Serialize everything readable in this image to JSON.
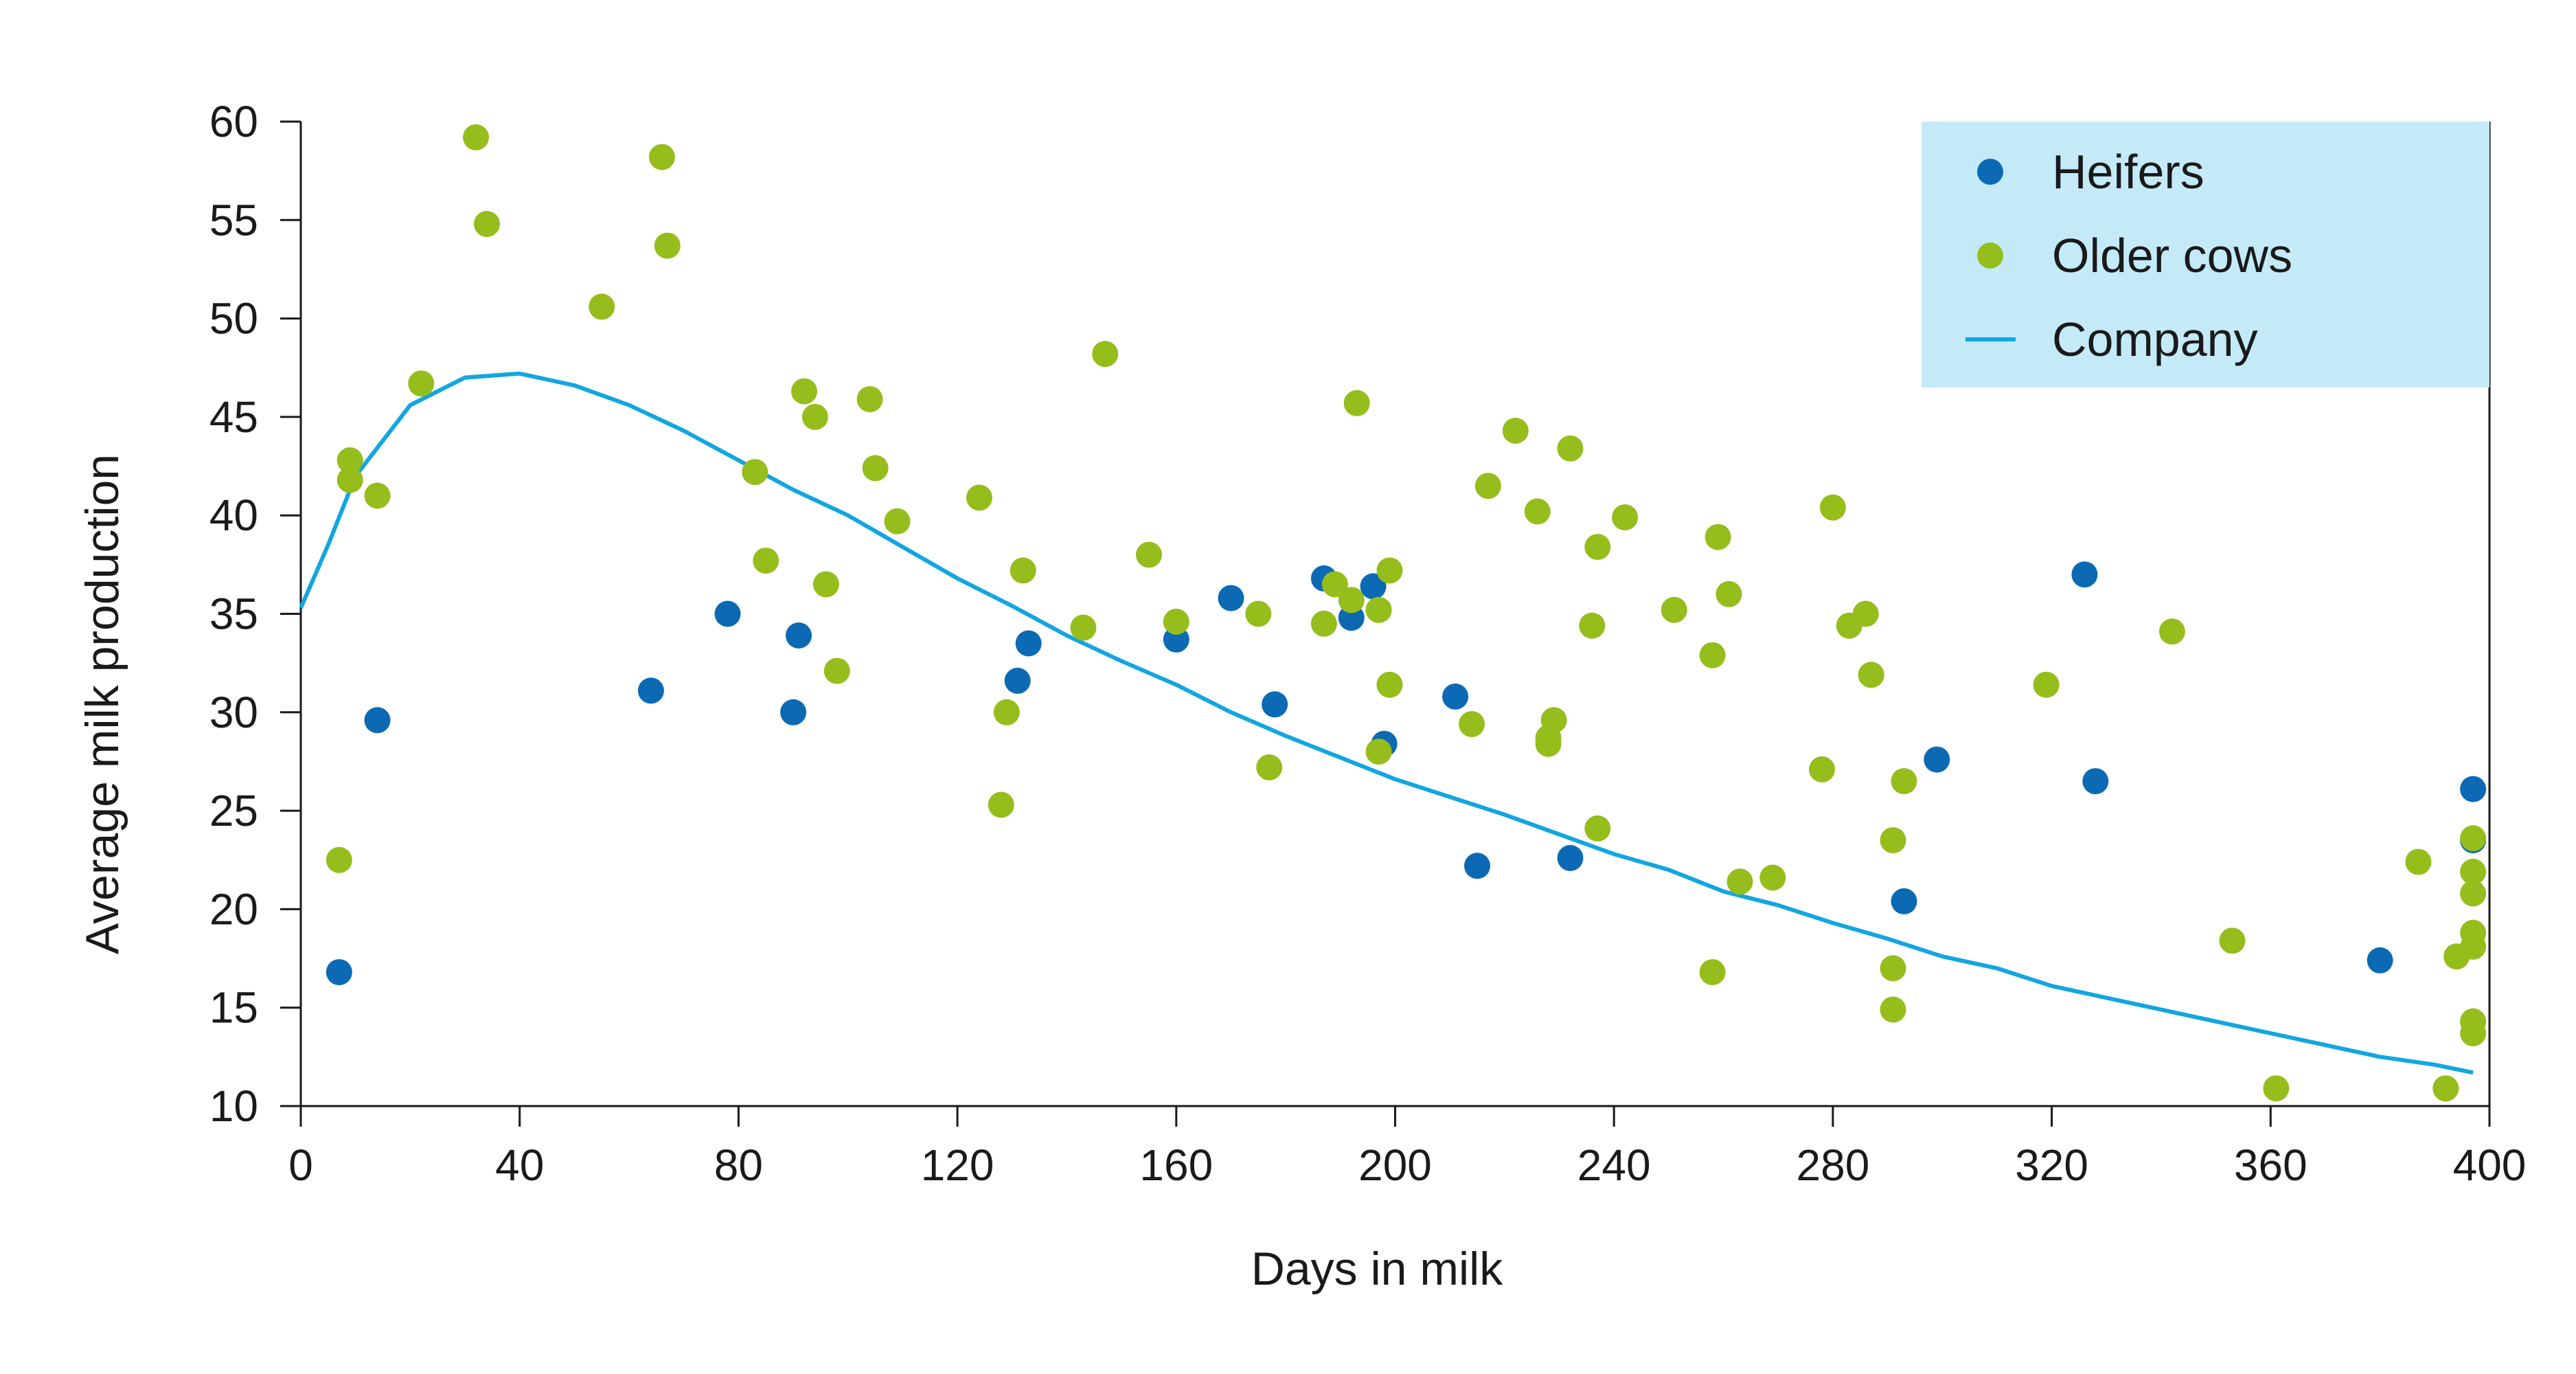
{
  "chart_data": {
    "type": "scatter",
    "title": "",
    "xlabel": "Days in milk",
    "ylabel": "Average milk production",
    "xlim": [
      0,
      400
    ],
    "ylim": [
      10,
      60
    ],
    "xticks": [
      0,
      40,
      80,
      120,
      160,
      200,
      240,
      280,
      320,
      360,
      400
    ],
    "yticks": [
      10,
      15,
      20,
      25,
      30,
      35,
      40,
      45,
      50,
      55,
      60
    ],
    "grid": false,
    "legend_position": "top-right",
    "legend_background": "#c4eaf8",
    "series": [
      {
        "name": "Heifers",
        "kind": "scatter",
        "color": "#0b6ab3",
        "points": [
          [
            7,
            16.8
          ],
          [
            14,
            29.6
          ],
          [
            64,
            31.1
          ],
          [
            78,
            35.0
          ],
          [
            91,
            33.9
          ],
          [
            90,
            30.0
          ],
          [
            131,
            31.6
          ],
          [
            133,
            33.5
          ],
          [
            160,
            33.7
          ],
          [
            170,
            35.8
          ],
          [
            178,
            30.4
          ],
          [
            187,
            36.8
          ],
          [
            192,
            34.8
          ],
          [
            196,
            36.4
          ],
          [
            198,
            28.4
          ],
          [
            211,
            30.8
          ],
          [
            215,
            22.2
          ],
          [
            232,
            22.6
          ],
          [
            293,
            20.4
          ],
          [
            299,
            27.6
          ],
          [
            326,
            37.0
          ],
          [
            328,
            26.5
          ],
          [
            380,
            17.4
          ],
          [
            397,
            26.1
          ],
          [
            397,
            23.5
          ]
        ]
      },
      {
        "name": "Older cows",
        "kind": "scatter",
        "color": "#95bd1c",
        "points": [
          [
            7,
            22.5
          ],
          [
            9,
            42.8
          ],
          [
            9,
            41.8
          ],
          [
            14,
            41.0
          ],
          [
            22,
            46.7
          ],
          [
            32,
            59.2
          ],
          [
            34,
            54.8
          ],
          [
            55,
            50.6
          ],
          [
            66,
            58.2
          ],
          [
            67,
            53.7
          ],
          [
            83,
            42.2
          ],
          [
            85,
            37.7
          ],
          [
            92,
            46.3
          ],
          [
            94,
            45.0
          ],
          [
            96,
            36.5
          ],
          [
            98,
            32.1
          ],
          [
            104,
            45.9
          ],
          [
            105,
            42.4
          ],
          [
            109,
            39.7
          ],
          [
            124,
            40.9
          ],
          [
            128,
            25.3
          ],
          [
            129,
            30.0
          ],
          [
            132,
            37.2
          ],
          [
            143,
            34.3
          ],
          [
            147,
            48.2
          ],
          [
            155,
            38.0
          ],
          [
            160,
            34.6
          ],
          [
            175,
            35.0
          ],
          [
            177,
            27.2
          ],
          [
            187,
            34.5
          ],
          [
            189,
            36.5
          ],
          [
            192,
            35.7
          ],
          [
            193,
            45.7
          ],
          [
            197,
            28.0
          ],
          [
            197,
            35.2
          ],
          [
            199,
            31.4
          ],
          [
            199,
            37.2
          ],
          [
            214,
            29.4
          ],
          [
            217,
            41.5
          ],
          [
            222,
            44.3
          ],
          [
            226,
            40.2
          ],
          [
            228,
            28.4
          ],
          [
            228,
            28.7
          ],
          [
            229,
            29.6
          ],
          [
            232,
            43.4
          ],
          [
            236,
            34.4
          ],
          [
            237,
            38.4
          ],
          [
            237,
            24.1
          ],
          [
            242,
            39.9
          ],
          [
            251,
            35.2
          ],
          [
            258,
            16.8
          ],
          [
            258,
            32.9
          ],
          [
            259,
            38.9
          ],
          [
            261,
            36.0
          ],
          [
            263,
            21.4
          ],
          [
            269,
            21.6
          ],
          [
            278,
            27.1
          ],
          [
            280,
            40.4
          ],
          [
            283,
            34.4
          ],
          [
            286,
            35.0
          ],
          [
            287,
            31.9
          ],
          [
            291,
            23.5
          ],
          [
            291,
            17.0
          ],
          [
            291,
            14.9
          ],
          [
            293,
            26.5
          ],
          [
            319,
            31.4
          ],
          [
            342,
            34.1
          ],
          [
            353,
            18.4
          ],
          [
            361,
            10.9
          ],
          [
            387,
            22.4
          ],
          [
            392,
            10.9
          ],
          [
            394,
            17.6
          ],
          [
            397,
            23.6
          ],
          [
            397,
            21.9
          ],
          [
            397,
            20.8
          ],
          [
            397,
            18.8
          ],
          [
            397,
            18.1
          ],
          [
            397,
            14.3
          ],
          [
            397,
            13.7
          ]
        ]
      },
      {
        "name": "Company",
        "kind": "line",
        "color": "#12a6e0",
        "points": [
          [
            0,
            35.3
          ],
          [
            5,
            38.5
          ],
          [
            10,
            42.0
          ],
          [
            20,
            45.6
          ],
          [
            30,
            47.0
          ],
          [
            40,
            47.2
          ],
          [
            50,
            46.6
          ],
          [
            60,
            45.6
          ],
          [
            70,
            44.3
          ],
          [
            80,
            42.8
          ],
          [
            90,
            41.3
          ],
          [
            100,
            40.0
          ],
          [
            110,
            38.4
          ],
          [
            120,
            36.8
          ],
          [
            130,
            35.4
          ],
          [
            140,
            33.9
          ],
          [
            150,
            32.6
          ],
          [
            160,
            31.4
          ],
          [
            170,
            30.0
          ],
          [
            180,
            28.8
          ],
          [
            190,
            27.7
          ],
          [
            200,
            26.6
          ],
          [
            210,
            25.7
          ],
          [
            220,
            24.8
          ],
          [
            230,
            23.8
          ],
          [
            240,
            22.8
          ],
          [
            250,
            22.0
          ],
          [
            260,
            20.9
          ],
          [
            270,
            20.2
          ],
          [
            280,
            19.3
          ],
          [
            290,
            18.5
          ],
          [
            300,
            17.6
          ],
          [
            310,
            17.0
          ],
          [
            320,
            16.1
          ],
          [
            330,
            15.5
          ],
          [
            340,
            14.9
          ],
          [
            350,
            14.3
          ],
          [
            360,
            13.7
          ],
          [
            370,
            13.1
          ],
          [
            380,
            12.5
          ],
          [
            390,
            12.1
          ],
          [
            397,
            11.7
          ]
        ]
      }
    ]
  }
}
